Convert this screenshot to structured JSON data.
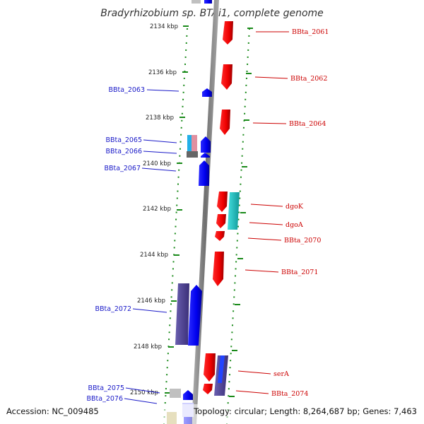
{
  "title": "Bradyrhizobium sp. BTAi1, complete genome",
  "footer": {
    "accession": "Accession: NC_009485",
    "summary": "Topology: circular; Length: 8,264,687 bp; Genes: 7,463"
  },
  "colors": {
    "forward_gene": "#ff0000",
    "reverse_gene": "#0000ff",
    "dark_gene": "#4a3f8c",
    "cyan_feature": "#22cccc",
    "axis": "#888888",
    "tick": "#1a8a1a",
    "left_label": "#1a1ac8",
    "right_label": "#cc0000"
  },
  "axis_ticks": [
    "2134 kbp",
    "2136 kbp",
    "2138 kbp",
    "2140 kbp",
    "2142 kbp",
    "2144 kbp",
    "2146 kbp",
    "2148 kbp",
    "2150 kbp"
  ],
  "reverse_genes": [
    "BBta_2063",
    "BBta_2065",
    "BBta_2066",
    "BBta_2067",
    "BBta_2072",
    "BBta_2075",
    "BBta_2076"
  ],
  "forward_genes": [
    "BBta_2061",
    "BBta_2062",
    "BBta_2064",
    "dgoK",
    "dgoA",
    "BBta_2070",
    "BBta_2071",
    "serA",
    "BBta_2074"
  ]
}
